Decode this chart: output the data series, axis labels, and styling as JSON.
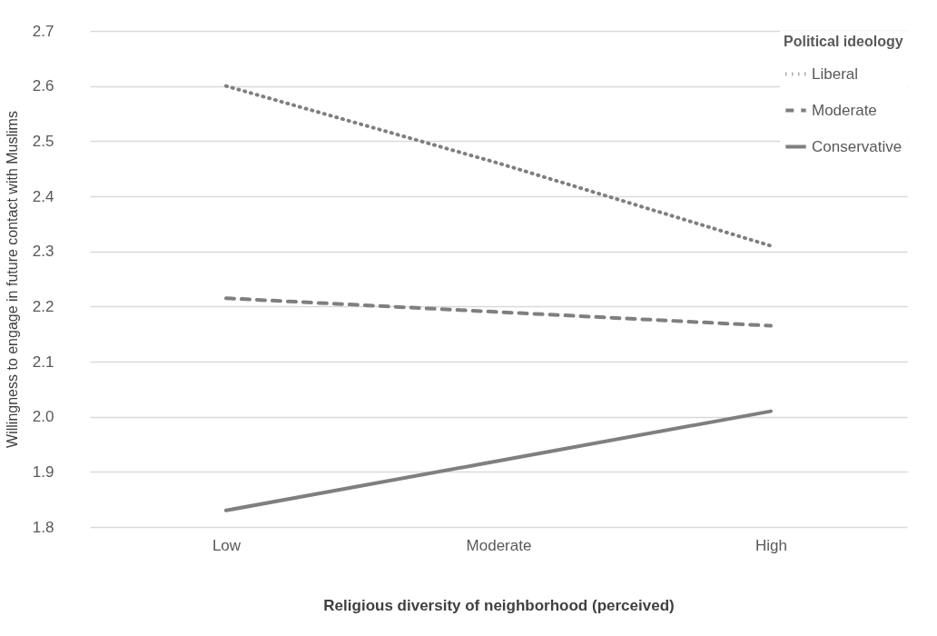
{
  "chart_data": {
    "type": "line",
    "xlabel": "Religious diversity of neighborhood (perceived)",
    "ylabel": "Willingness to engage in future contact with Muslims",
    "legend_title": "Political ideology",
    "legend": "top right",
    "grid": "y",
    "categories": [
      "Low",
      "Moderate",
      "High"
    ],
    "ylim": [
      1.8,
      2.7
    ],
    "yticks": [
      {
        "value": 1.8,
        "label": "1.8"
      },
      {
        "value": 1.9,
        "label": "1.9"
      },
      {
        "value": 2.0,
        "label": "2.0"
      },
      {
        "value": 2.1,
        "label": "2.1"
      },
      {
        "value": 2.2,
        "label": "2.2"
      },
      {
        "value": 2.3,
        "label": "2.3"
      },
      {
        "value": 2.4,
        "label": "2.4"
      },
      {
        "value": 2.5,
        "label": "2.5"
      },
      {
        "value": 2.6,
        "label": "2.6"
      },
      {
        "value": 2.7,
        "label": "2.7"
      }
    ],
    "series": [
      {
        "name": "Liberal",
        "color": "#7f7f7f",
        "line_style": "dotted",
        "values": [
          2.6,
          2.46,
          2.31
        ]
      },
      {
        "name": "Moderate",
        "color": "#7f7f7f",
        "line_style": "dashed",
        "values": [
          2.215,
          2.19,
          2.165
        ]
      },
      {
        "name": "Conservative",
        "color": "#7f7f7f",
        "line_style": "solid",
        "values": [
          1.83,
          1.92,
          2.01
        ]
      }
    ]
  }
}
